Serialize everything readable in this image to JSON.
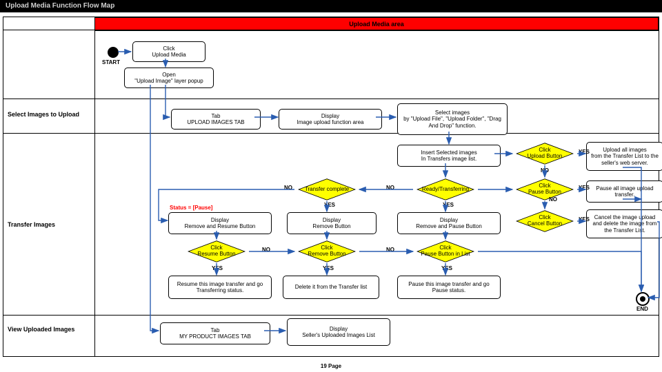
{
  "title": "Upload Media Function Flow Map",
  "header": "Upload Media area",
  "footer": "19  Page",
  "lanes": {
    "l1": "Select Images to Upload",
    "l2": "Transfer Images",
    "l3": "View Uploaded Images"
  },
  "start": "START",
  "end": "END",
  "nodes": {
    "n1": "Click\nUpload Media",
    "n2": "Open\n\"Upload Image\" layer popup",
    "n3": "Tab\nUPLOAD IMAGES TAB",
    "n4": "Display\nImage upload function area",
    "n5": "Select images\nby \"Upload File\", \"Upload Folder\", \"Drag And Drop\" function.",
    "n6": "Insert Selected images\nIn Transfers image list.",
    "d1": "Click\nUpload Button",
    "n7": "Upload all images\nfrom the Transfer List to the seller's web server.",
    "d2": "Transfer complete",
    "d3": "Ready/Transferring",
    "d4": "Click\nPause Button",
    "n8": "Pause all image upload transfer.",
    "status": "Status = [Pause]",
    "n9": "Display\nRemove and Resume Button",
    "n10": "Display\nRemove Button",
    "n11": "Display\nRemove and Pause Button",
    "d5": "Click\nCancel Button",
    "n12": "Cancel the image upload and delete the image from the Transfer List.",
    "d6": "Click\nResume Button",
    "d7": "Click\nRemove Button",
    "d8": "Click\nPause Button in List",
    "n13": "Resume this image transfer and go Transferring status.",
    "n14": "Delete it from the Transfer list",
    "n15": "Pause this image transfer and go Pause status.",
    "n16": "Tab\nMY PRODUCT IMAGES TAB",
    "n17": "Display\nSeller's Uploaded Images List"
  },
  "labels": {
    "yes": "YES",
    "no": "NO"
  },
  "colors": {
    "diamond_fill": "#ffff00",
    "arrow": "#2a5db0",
    "band": "#ff0000"
  }
}
